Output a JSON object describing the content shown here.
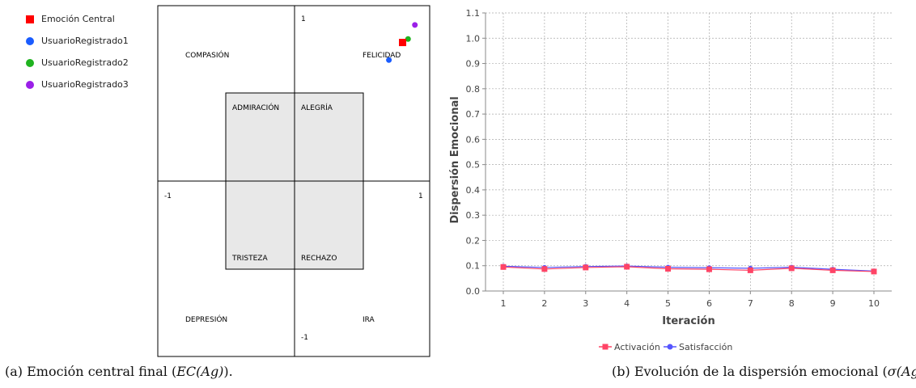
{
  "chart_data": [
    {
      "type": "scatter",
      "x_range": [
        -1,
        1
      ],
      "y_range": [
        -1,
        1
      ],
      "axis_labels": {
        "x_min": "-1",
        "x_max": "1",
        "y_max": "1",
        "y_min": "-1"
      },
      "regions": [
        {
          "name": "COMPASIÓN"
        },
        {
          "name": "FELICIDAD"
        },
        {
          "name": "ADMIRACIÓN"
        },
        {
          "name": "ALEGRÍA"
        },
        {
          "name": "TRISTEZA"
        },
        {
          "name": "RECHAZO"
        },
        {
          "name": "DEPRESIÓN"
        },
        {
          "name": "IRA"
        }
      ],
      "series": [
        {
          "name": "Emoción Central",
          "color": "#ff0000",
          "shape": "square",
          "x": 0.79,
          "y": 0.79
        },
        {
          "name": "UsuarioRegistrado1",
          "color": "#1a5cff",
          "shape": "circle",
          "x": 0.69,
          "y": 0.69
        },
        {
          "name": "UsuarioRegistrado2",
          "color": "#1fb31f",
          "shape": "circle",
          "x": 0.83,
          "y": 0.81
        },
        {
          "name": "UsuarioRegistrado3",
          "color": "#9b1fe8",
          "shape": "circle",
          "x": 0.88,
          "y": 0.89
        }
      ],
      "caption": {
        "prefix": "(a) Emoción central final (",
        "math": "EC(Ag)",
        "suffix": ")."
      }
    },
    {
      "type": "line",
      "xlabel": "Iteración",
      "ylabel": "Dispersión Emocional",
      "ylim": [
        0,
        1.1
      ],
      "yticks": [
        "0.0",
        "0.1",
        "0.2",
        "0.3",
        "0.4",
        "0.5",
        "0.6",
        "0.7",
        "0.8",
        "0.9",
        "1.0",
        "1.1"
      ],
      "x": [
        1,
        2,
        3,
        4,
        5,
        6,
        7,
        8,
        9,
        10
      ],
      "grid": true,
      "legend_position": "bottom",
      "series": [
        {
          "name": "Activación",
          "color": "#ff4466",
          "marker": "square",
          "values": [
            0.095,
            0.087,
            0.093,
            0.096,
            0.088,
            0.086,
            0.082,
            0.09,
            0.082,
            0.077
          ]
        },
        {
          "name": "Satisfacción",
          "color": "#5555ff",
          "marker": "circle",
          "values": [
            0.098,
            0.093,
            0.097,
            0.099,
            0.094,
            0.092,
            0.09,
            0.094,
            0.086,
            0.079
          ]
        }
      ],
      "caption": {
        "prefix": "(b) Evolución de la dispersión emocional (",
        "math": "σ(Ag)",
        "suffix": ")."
      }
    }
  ]
}
